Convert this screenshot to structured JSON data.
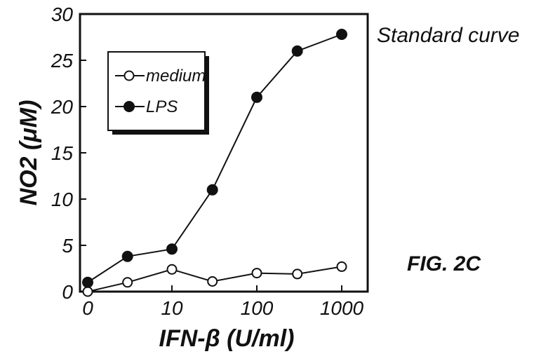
{
  "chart_data": {
    "type": "line",
    "title": "Standard curve",
    "figure_label": "FIG. 2C",
    "xlabel": "IFN-β (U/ml)",
    "ylabel": "NO2 (μM)",
    "x_scale": "log",
    "x_ticks": [
      "0",
      "10",
      "100",
      "1000"
    ],
    "y_ticks": [
      "0",
      "5",
      "10",
      "15",
      "20",
      "25",
      "30"
    ],
    "ylim": [
      0,
      30
    ],
    "grid": false,
    "legend_position": "top-left",
    "x": [
      0,
      3,
      10,
      30,
      100,
      300,
      1000
    ],
    "series": [
      {
        "name": "medium",
        "marker": "open-circle",
        "color": "#111111",
        "values": [
          0,
          1.0,
          2.4,
          1.1,
          2.0,
          1.9,
          2.7
        ]
      },
      {
        "name": "LPS",
        "marker": "filled-circle",
        "color": "#111111",
        "values": [
          1.0,
          3.8,
          4.6,
          11.0,
          21.0,
          26.0,
          27.8
        ]
      }
    ]
  }
}
